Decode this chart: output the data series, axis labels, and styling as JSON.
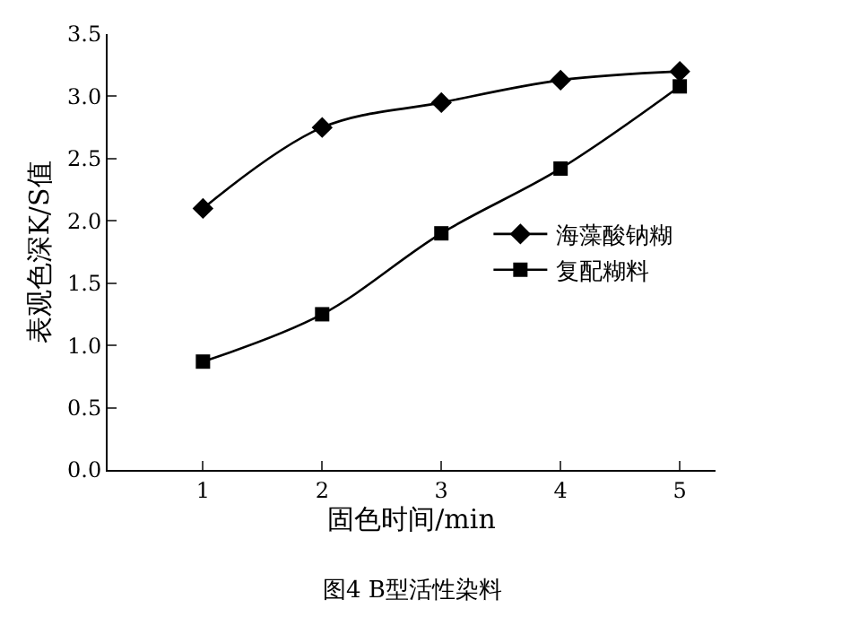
{
  "chart_data": {
    "type": "line",
    "xlabel": "固色时间/min",
    "ylabel": "表观色深K/S值",
    "x": [
      1,
      2,
      3,
      4,
      5
    ],
    "series": [
      {
        "name": "海藻酸钠糊",
        "color": "#000000",
        "marker": "diamond",
        "values": [
          2.1,
          2.75,
          2.95,
          3.13,
          3.2
        ]
      },
      {
        "name": "复配糊料",
        "color": "#000000",
        "marker": "square",
        "values": [
          0.87,
          1.25,
          1.9,
          2.42,
          3.08
        ]
      }
    ],
    "xlim": [
      0.2,
      5.3
    ],
    "xticks": [
      1,
      2,
      3,
      4,
      5
    ],
    "ylim": [
      0,
      3.5
    ],
    "yticks": [
      {
        "value": 0,
        "label": "0.0"
      },
      {
        "value": 0.5,
        "label": "0.5"
      },
      {
        "value": 1,
        "label": "1.0"
      },
      {
        "value": 1.5,
        "label": "1.5"
      },
      {
        "value": 2,
        "label": "2.0"
      },
      {
        "value": 2.5,
        "label": "2.5"
      },
      {
        "value": 3,
        "label": "3.0"
      },
      {
        "value": 3.5,
        "label": "3.5"
      }
    ],
    "grid": false,
    "legend": "right",
    "line_style": "solid",
    "annotations": [
      "图4 B型活性染料"
    ]
  }
}
